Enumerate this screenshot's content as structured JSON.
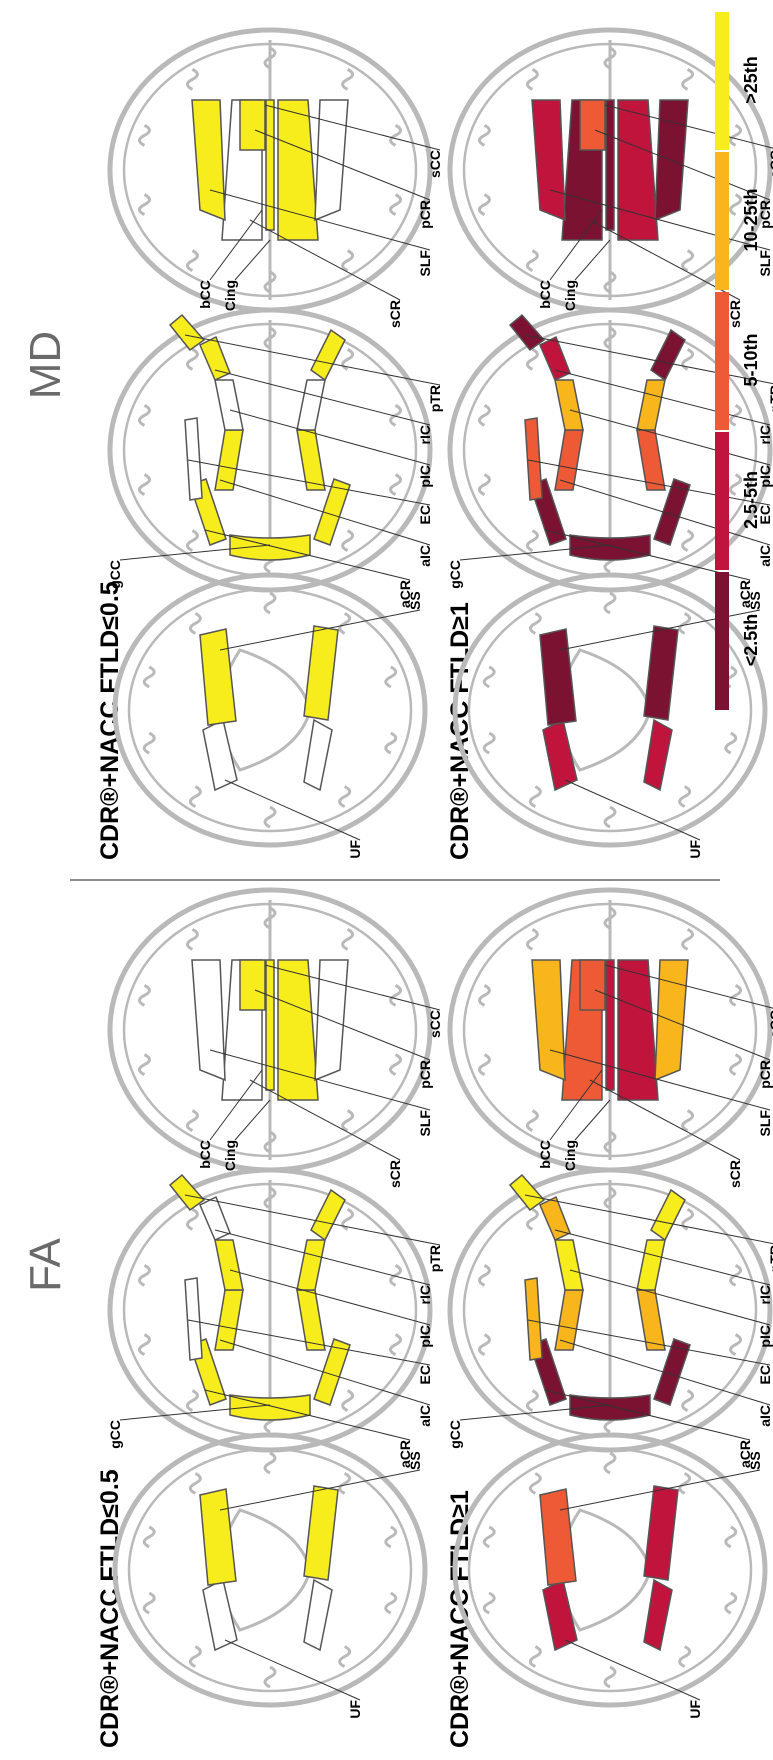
{
  "modalities": {
    "fa": "FA",
    "md": "MD"
  },
  "rows": {
    "fa_top": "CDR®+NACC FTLD≤0.5",
    "fa_bottom": "CDR®+NACC FTLD≥1",
    "md_top": "CDR®+NACC FTLD≤0.5",
    "md_bottom": "CDR®+NACC FTLD≥1"
  },
  "region_labels": {
    "UF": "UF",
    "SS": "SS",
    "aCR": "aCR",
    "aIC": "aIC",
    "EC": "EC",
    "pIC": "pIC",
    "rIC": "rIC",
    "pTR": "pTR",
    "gCC": "gCC",
    "sCR": "sCR",
    "SLF": "SLF",
    "pCR": "pCR",
    "sCC": "sCC",
    "bCC": "bCC",
    "Cing": "Cing"
  },
  "legend": {
    "items": [
      {
        "label": "<2.5th",
        "color": "#7b1232"
      },
      {
        "label": "2.5-5th",
        "color": "#c0143c"
      },
      {
        "label": "5-10th",
        "color": "#ee5a36"
      },
      {
        "label": "10-25th",
        "color": "#f8b61c"
      },
      {
        "label": ">25th",
        "color": "#f7ec1c"
      }
    ]
  },
  "colors": {
    "outline": "#b9b9b9",
    "tract_stroke": "#555555",
    "white": "#ffffff",
    "divider": "#666666"
  }
}
